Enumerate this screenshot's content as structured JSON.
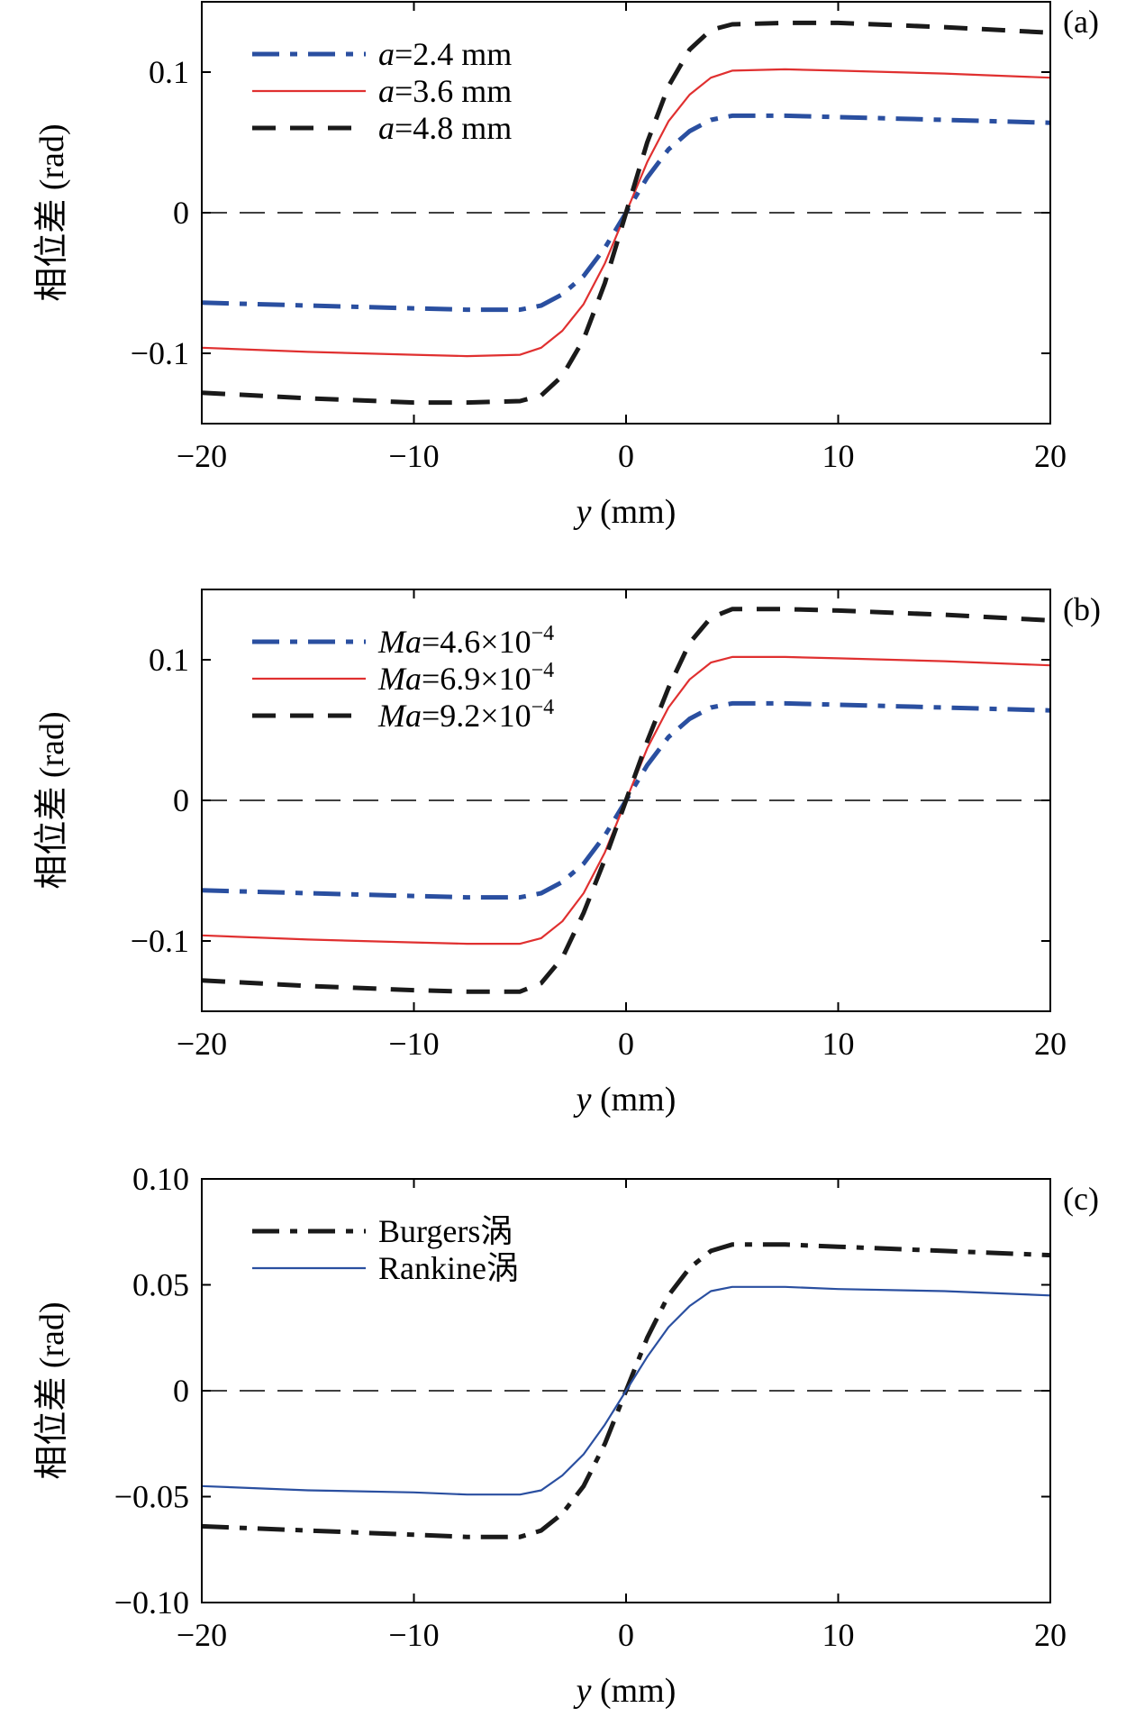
{
  "chart_data": [
    {
      "type": "line",
      "panel_label": "(a)",
      "xlabel_var": "y",
      "xlabel_unit": " (mm)",
      "ylabel": "相位差 (rad)",
      "xlim": [
        -20,
        20
      ],
      "ylim": [
        -0.15,
        0.15
      ],
      "xticks": [
        -20,
        -10,
        0,
        10,
        20
      ],
      "xtick_labels": [
        "−20",
        "−10",
        "0",
        "10",
        "20"
      ],
      "yticks": [
        -0.1,
        0,
        0.1
      ],
      "ytick_labels": [
        "−0.1",
        "0",
        "0.1"
      ],
      "legend_position": "top-left",
      "zero_line": true,
      "x": [
        -20,
        -15,
        -10,
        -7.5,
        -5,
        -4,
        -3,
        -2,
        -1,
        0,
        1,
        2,
        3,
        4,
        5,
        7.5,
        10,
        15,
        20
      ],
      "series": [
        {
          "name": "a=2.4 mm",
          "name_italic": "a",
          "name_rest": "=2.4 mm",
          "color": "#2a4fa0",
          "dash": "dashdot",
          "width": 5,
          "values": [
            -0.064,
            -0.066,
            -0.068,
            -0.069,
            -0.069,
            -0.066,
            -0.058,
            -0.045,
            -0.025,
            0,
            0.025,
            0.045,
            0.058,
            0.066,
            0.069,
            0.069,
            0.068,
            0.066,
            0.064
          ]
        },
        {
          "name": "a=3.6 mm",
          "name_italic": "a",
          "name_rest": "=3.6 mm",
          "color": "#e03030",
          "dash": "solid",
          "width": 2.2,
          "values": [
            -0.096,
            -0.099,
            -0.101,
            -0.102,
            -0.101,
            -0.096,
            -0.084,
            -0.065,
            -0.036,
            0,
            0.036,
            0.065,
            0.084,
            0.096,
            0.101,
            0.102,
            0.101,
            0.099,
            0.096
          ]
        },
        {
          "name": "a=4.8 mm",
          "name_italic": "a",
          "name_rest": "=4.8 mm",
          "color": "#1a1a1a",
          "dash": "dash",
          "width": 5,
          "values": [
            -0.128,
            -0.132,
            -0.135,
            -0.135,
            -0.134,
            -0.13,
            -0.116,
            -0.09,
            -0.05,
            0,
            0.05,
            0.09,
            0.116,
            0.13,
            0.134,
            0.135,
            0.135,
            0.132,
            0.128
          ]
        }
      ]
    },
    {
      "type": "line",
      "panel_label": "(b)",
      "xlabel_var": "y",
      "xlabel_unit": " (mm)",
      "ylabel": "相位差 (rad)",
      "xlim": [
        -20,
        20
      ],
      "ylim": [
        -0.15,
        0.15
      ],
      "xticks": [
        -20,
        -10,
        0,
        10,
        20
      ],
      "xtick_labels": [
        "−20",
        "−10",
        "0",
        "10",
        "20"
      ],
      "yticks": [
        -0.1,
        0,
        0.1
      ],
      "ytick_labels": [
        "−0.1",
        "0",
        "0.1"
      ],
      "legend_position": "top-left",
      "zero_line": true,
      "x": [
        -20,
        -15,
        -10,
        -7.5,
        -5,
        -4,
        -3,
        -2,
        -1,
        0,
        1,
        2,
        3,
        4,
        5,
        7.5,
        10,
        15,
        20
      ],
      "series": [
        {
          "name": "Ma=4.6×10−4",
          "name_italic": "Ma",
          "name_rest": "=4.6×10",
          "name_sup": "−4",
          "color": "#2a4fa0",
          "dash": "dashdot",
          "width": 5,
          "values": [
            -0.064,
            -0.066,
            -0.068,
            -0.069,
            -0.069,
            -0.066,
            -0.058,
            -0.045,
            -0.025,
            0,
            0.025,
            0.045,
            0.058,
            0.066,
            0.069,
            0.069,
            0.068,
            0.066,
            0.064
          ]
        },
        {
          "name": "Ma=6.9×10−4",
          "name_italic": "Ma",
          "name_rest": "=6.9×10",
          "name_sup": "−4",
          "color": "#e03030",
          "dash": "solid",
          "width": 2.2,
          "values": [
            -0.096,
            -0.099,
            -0.101,
            -0.102,
            -0.102,
            -0.098,
            -0.086,
            -0.066,
            -0.037,
            0,
            0.037,
            0.066,
            0.086,
            0.098,
            0.102,
            0.102,
            0.101,
            0.099,
            0.096
          ]
        },
        {
          "name": "Ma=9.2×10−4",
          "name_italic": "Ma",
          "name_rest": "=9.2×10",
          "name_sup": "−4",
          "color": "#1a1a1a",
          "dash": "dash",
          "width": 5,
          "values": [
            -0.128,
            -0.132,
            -0.135,
            -0.136,
            -0.136,
            -0.13,
            -0.112,
            -0.08,
            -0.042,
            0,
            0.042,
            0.08,
            0.112,
            0.13,
            0.136,
            0.136,
            0.135,
            0.132,
            0.128
          ]
        }
      ]
    },
    {
      "type": "line",
      "panel_label": "(c)",
      "xlabel_var": "y",
      "xlabel_unit": " (mm)",
      "ylabel": "相位差 (rad)",
      "xlim": [
        -20,
        20
      ],
      "ylim": [
        -0.1,
        0.1
      ],
      "xticks": [
        -20,
        -10,
        0,
        10,
        20
      ],
      "xtick_labels": [
        "−20",
        "−10",
        "0",
        "10",
        "20"
      ],
      "yticks": [
        -0.1,
        -0.05,
        0,
        0.05,
        0.1
      ],
      "ytick_labels": [
        "−0.10",
        "−0.05",
        "0",
        "0.05",
        "0.10"
      ],
      "legend_position": "top-left",
      "zero_line": true,
      "x": [
        -20,
        -15,
        -10,
        -7.5,
        -5,
        -4,
        -3,
        -2,
        -1,
        0,
        1,
        2,
        3,
        4,
        5,
        7.5,
        10,
        15,
        20
      ],
      "series": [
        {
          "name": "Burgers涡",
          "name_italic": "",
          "name_rest": "Burgers涡",
          "color": "#1a1a1a",
          "dash": "dashdot",
          "width": 5,
          "values": [
            -0.064,
            -0.066,
            -0.068,
            -0.069,
            -0.069,
            -0.066,
            -0.058,
            -0.045,
            -0.025,
            0,
            0.025,
            0.045,
            0.058,
            0.066,
            0.069,
            0.069,
            0.068,
            0.066,
            0.064
          ]
        },
        {
          "name": "Rankine涡",
          "name_italic": "",
          "name_rest": "Rankine涡",
          "color": "#2a4fa0",
          "dash": "solid",
          "width": 2.2,
          "values": [
            -0.045,
            -0.047,
            -0.048,
            -0.049,
            -0.049,
            -0.047,
            -0.04,
            -0.03,
            -0.016,
            0,
            0.016,
            0.03,
            0.04,
            0.047,
            0.049,
            0.049,
            0.048,
            0.047,
            0.045
          ]
        }
      ]
    }
  ]
}
